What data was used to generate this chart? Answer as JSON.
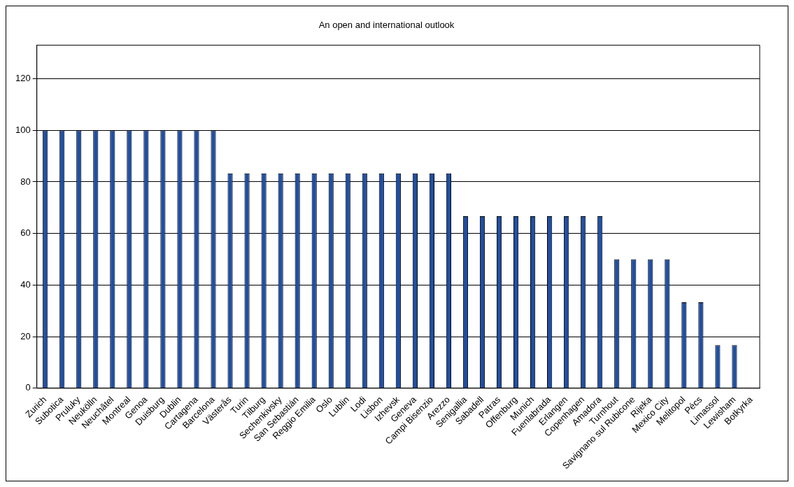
{
  "chart_data": {
    "type": "bar",
    "title": "An open and international outlook",
    "categories": [
      "Zurich",
      "Subotica",
      "Pruluky",
      "Neukölln",
      "Neuchâtel",
      "Montreal",
      "Genoa",
      "Duisburg",
      "Dublin",
      "Cartagena",
      "Barcelona",
      "Västerås",
      "Turin",
      "Tilburg",
      "Sechenkivsky",
      "San Sebastián",
      "Reggio Emilia",
      "Oslo",
      "Lublin",
      "Lodi",
      "Lisbon",
      "Izhevsk",
      "Geneva",
      "Campi Bisenzio",
      "Arezzo",
      "Senigallia",
      "Sabadell",
      "Patras",
      "Offenburg",
      "Munich",
      "Fuenlabrada",
      "Erlangen",
      "Copenhagen",
      "Amadora",
      "Turnhout",
      "Savignano sul Rubicone",
      "Rijeka",
      "Mexico City",
      "Melitopol",
      "Pécs",
      "Limassol",
      "Lewisham",
      "Botkyrka"
    ],
    "values": [
      100,
      100,
      100,
      100,
      100,
      100,
      100,
      100,
      100,
      100,
      100,
      83.3,
      83.3,
      83.3,
      83.3,
      83.3,
      83.3,
      83.3,
      83.3,
      83.3,
      83.3,
      83.3,
      83.3,
      83.3,
      83.3,
      66.7,
      66.7,
      66.7,
      66.7,
      66.7,
      66.7,
      66.7,
      66.7,
      66.7,
      50,
      50,
      50,
      50,
      33.3,
      33.3,
      16.7,
      16.7,
      0
    ],
    "color": "#1f4fa3",
    "ylim": [
      0,
      133
    ],
    "yticks": [
      0,
      20,
      40,
      60,
      80,
      100,
      120
    ],
    "grid": "y",
    "legend": false
  }
}
